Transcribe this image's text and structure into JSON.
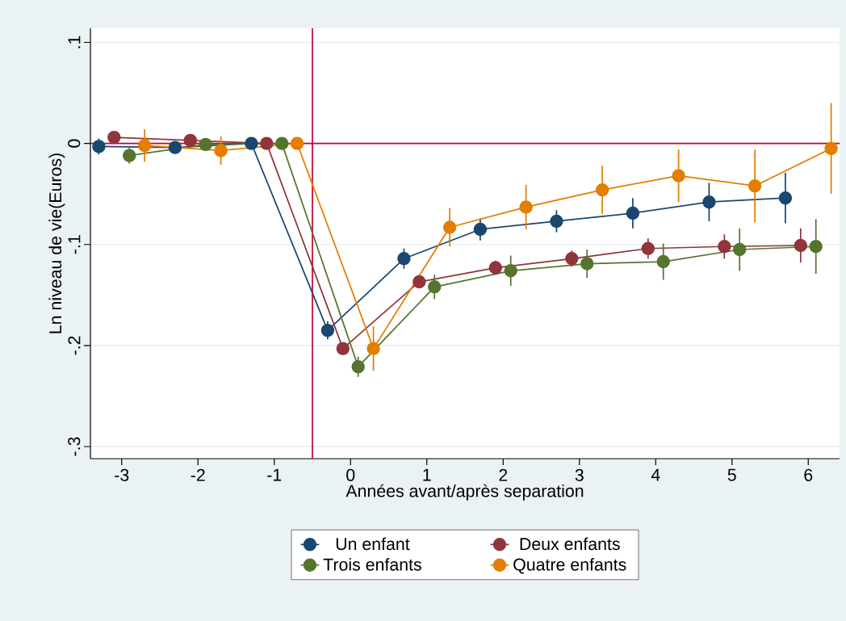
{
  "chart_data": {
    "type": "line",
    "xlabel": "Années avant/après separation",
    "ylabel": "Ln niveau de vie(Euros)",
    "xlim": [
      -3.41,
      6.41
    ],
    "ylim": [
      -0.312,
      0.114
    ],
    "xticks": [
      -3,
      -2,
      -1,
      0,
      1,
      2,
      3,
      4,
      5,
      6
    ],
    "yticks": [
      {
        "value": 0.1,
        "label": ".1"
      },
      {
        "value": 0,
        "label": "0"
      },
      {
        "value": -0.1,
        "label": "-.1"
      },
      {
        "value": -0.2,
        "label": "-.2"
      },
      {
        "value": -0.3,
        "label": "-.3"
      }
    ],
    "grid": "y",
    "legend": "bottom",
    "marker": "circle",
    "line_style": "solid",
    "ref_lines": [
      {
        "axis": "y",
        "value": 0,
        "color": "#c10534"
      },
      {
        "axis": "x",
        "value": -0.5,
        "color": "#c10534"
      }
    ],
    "series": [
      {
        "name": "Un enfant",
        "color": "#1a476f",
        "x": [
          -3.3,
          -2.3,
          -1.3,
          -0.3,
          0.7,
          1.7,
          2.7,
          3.7,
          4.7,
          5.7
        ],
        "values": [
          -0.003,
          -0.004,
          0,
          -0.185,
          -0.114,
          -0.085,
          -0.077,
          -0.069,
          -0.058,
          -0.054
        ],
        "errors": [
          0.008,
          0.006,
          null,
          0.009,
          0.01,
          0.011,
          0.011,
          0.015,
          0.019,
          0.025
        ]
      },
      {
        "name": "Deux enfants",
        "color": "#90353b",
        "x": [
          -3.1,
          -2.1,
          -1.1,
          -0.1,
          0.9,
          1.9,
          2.9,
          3.9,
          4.9,
          5.9
        ],
        "values": [
          0.006,
          0.003,
          0,
          -0.203,
          -0.137,
          -0.123,
          -0.114,
          -0.104,
          -0.102,
          -0.101
        ],
        "errors": [
          0.004,
          0.004,
          null,
          0.006,
          0.006,
          0.007,
          0.008,
          0.01,
          0.012,
          0.017
        ]
      },
      {
        "name": "Trois enfants",
        "color": "#55752f",
        "x": [
          -2.9,
          -1.9,
          -0.9,
          0.1,
          1.1,
          2.1,
          3.1,
          4.1,
          5.1,
          6.1
        ],
        "values": [
          -0.012,
          -0.001,
          0,
          -0.221,
          -0.142,
          -0.126,
          -0.119,
          -0.117,
          -0.105,
          -0.102
        ],
        "errors": [
          0.008,
          0.006,
          null,
          0.01,
          0.012,
          0.015,
          0.014,
          0.018,
          0.021,
          0.027
        ]
      },
      {
        "name": "Quatre enfants",
        "color": "#e37e00",
        "x": [
          -2.7,
          -1.7,
          -0.7,
          0.3,
          1.3,
          2.3,
          3.3,
          4.3,
          5.3,
          6.3
        ],
        "values": [
          -0.002,
          -0.007,
          0,
          -0.203,
          -0.083,
          -0.063,
          -0.046,
          -0.032,
          -0.042,
          -0.005
        ],
        "errors": [
          0.016,
          0.014,
          null,
          0.022,
          0.019,
          0.022,
          0.024,
          0.026,
          0.036,
          0.045
        ]
      }
    ]
  }
}
